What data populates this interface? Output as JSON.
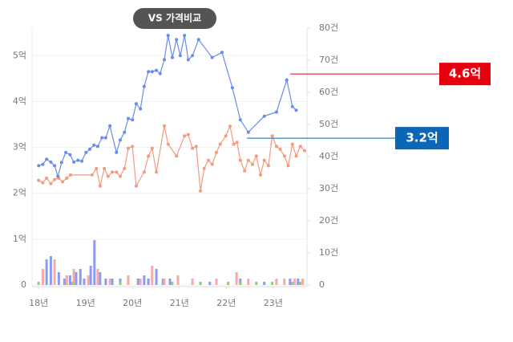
{
  "chart_data": {
    "type": "line",
    "title": "VS 가격비교",
    "xlim": [
      17.86,
      23.67
    ],
    "xticks": [
      {
        "value": 18,
        "label": "18년"
      },
      {
        "value": 19,
        "label": "19년"
      },
      {
        "value": 20,
        "label": "20년"
      },
      {
        "value": 21,
        "label": "21년"
      },
      {
        "value": 22,
        "label": "22년"
      },
      {
        "value": 23,
        "label": "23년"
      }
    ],
    "ylim": [
      0,
      5.6
    ],
    "yticks": [
      0,
      {
        "value": 1,
        "label": "1억"
      },
      {
        "value": 2,
        "label": "2억"
      },
      {
        "value": 3,
        "label": "3억"
      },
      {
        "value": 4,
        "label": "4억"
      },
      {
        "value": 5,
        "label": "5억"
      }
    ],
    "y2lim": [
      0,
      80
    ],
    "y2ticks": [
      0,
      {
        "value": 10,
        "label": "10건"
      },
      {
        "value": 20,
        "label": "20건"
      },
      {
        "value": 30,
        "label": "30건"
      },
      {
        "value": 40,
        "label": "40건"
      },
      {
        "value": 50,
        "label": "50건"
      },
      {
        "value": 60,
        "label": "60건"
      },
      {
        "value": 70,
        "label": "70건"
      },
      {
        "value": 80,
        "label": "80건"
      }
    ],
    "grid": true,
    "series": [
      {
        "type": "bar",
        "axis": "y2",
        "color": "#8c9bee",
        "x": [
          18.17,
          18.26,
          18.43,
          18.55,
          18.67,
          18.8,
          18.89,
          18.97,
          19.11,
          19.19,
          19.31,
          19.43,
          19.57,
          19.74,
          20.12,
          20.25,
          20.34,
          20.51,
          20.65,
          20.8,
          21.45,
          21.65,
          22.3,
          22.81,
          23.36,
          23.53
        ],
        "values": [
          8,
          9,
          4,
          2,
          3,
          4,
          5,
          2,
          6,
          14,
          4,
          2,
          2,
          2,
          2,
          3,
          2,
          5,
          2,
          2,
          1,
          1,
          2,
          1,
          2,
          2
        ]
      },
      {
        "type": "bar",
        "axis": "y2",
        "color": "#f5aaa8",
        "x": [
          18.09,
          18.34,
          18.6,
          18.75,
          19.06,
          19.26,
          19.52,
          19.91,
          20.17,
          20.42,
          20.68,
          20.97,
          21.28,
          21.79,
          22.22,
          22.47,
          23.07,
          23.24,
          23.46,
          23.63
        ],
        "values": [
          5,
          8,
          3,
          5,
          3,
          5,
          2,
          3,
          2,
          6,
          2,
          3,
          2,
          2,
          4,
          2,
          2,
          2,
          2,
          2
        ]
      },
      {
        "type": "bar",
        "axis": "y2",
        "color": "#8fcf6f",
        "x": [
          18.0,
          18.72,
          19.74,
          20.85,
          21.45,
          22.04,
          22.3,
          22.64,
          22.98,
          23.41,
          23.58
        ],
        "values": [
          1,
          1,
          1,
          1,
          1,
          1,
          1,
          1,
          1,
          1,
          1
        ]
      },
      {
        "type": "line",
        "color": "#f39a7f",
        "x": [
          18.0,
          18.09,
          18.17,
          18.26,
          18.34,
          18.43,
          18.51,
          18.6,
          18.68,
          19.14,
          19.23,
          19.31,
          19.4,
          19.48,
          19.57,
          19.66,
          19.74,
          19.83,
          19.91,
          20.0,
          20.08,
          20.25,
          20.34,
          20.42,
          20.51,
          20.68,
          20.76,
          20.94,
          21.11,
          21.19,
          21.28,
          21.36,
          21.45,
          21.53,
          21.62,
          21.7,
          21.79,
          21.87,
          21.99,
          22.08,
          22.16,
          22.23,
          22.3,
          22.39,
          22.47,
          22.56,
          22.64,
          22.73,
          22.81,
          22.9,
          22.98,
          23.07,
          23.15,
          23.24,
          23.32,
          23.41,
          23.49,
          23.58,
          23.67
        ],
        "values": [
          2.28,
          2.23,
          2.33,
          2.21,
          2.3,
          2.33,
          2.25,
          2.33,
          2.4,
          2.4,
          2.54,
          2.16,
          2.54,
          2.37,
          2.46,
          2.46,
          2.37,
          2.54,
          2.98,
          3.02,
          2.16,
          2.46,
          2.81,
          2.98,
          2.46,
          3.47,
          3.07,
          2.81,
          3.25,
          3.28,
          2.98,
          3.02,
          2.05,
          2.54,
          2.72,
          2.63,
          2.89,
          3.07,
          3.25,
          3.46,
          3.07,
          3.11,
          2.72,
          2.49,
          2.72,
          2.63,
          2.81,
          2.4,
          2.72,
          2.6,
          3.25,
          3.02,
          2.96,
          2.81,
          2.6,
          3.07,
          2.81,
          3.02,
          2.93
        ]
      },
      {
        "type": "line",
        "color": "#6b8be8",
        "x": [
          18.0,
          18.09,
          18.17,
          18.26,
          18.34,
          18.41,
          18.49,
          18.58,
          18.67,
          18.75,
          18.84,
          18.92,
          19.01,
          19.09,
          19.18,
          19.26,
          19.35,
          19.43,
          19.52,
          19.66,
          19.74,
          19.83,
          19.91,
          20.0,
          20.08,
          20.17,
          20.25,
          20.34,
          20.42,
          20.51,
          20.59,
          20.68,
          20.76,
          20.85,
          20.94,
          21.02,
          21.11,
          21.19,
          21.28,
          21.41,
          21.7,
          21.91,
          22.13,
          22.3,
          22.47,
          22.81,
          23.07,
          23.29,
          23.41,
          23.49
        ],
        "values": [
          2.6,
          2.63,
          2.74,
          2.68,
          2.6,
          2.37,
          2.67,
          2.89,
          2.84,
          2.68,
          2.72,
          2.7,
          2.89,
          2.96,
          3.05,
          3.02,
          3.21,
          3.21,
          3.47,
          2.89,
          3.16,
          3.33,
          3.63,
          3.6,
          3.95,
          3.84,
          4.33,
          4.65,
          4.65,
          4.68,
          4.61,
          4.91,
          5.44,
          4.96,
          5.35,
          5.0,
          5.44,
          4.91,
          5.0,
          5.35,
          4.96,
          5.07,
          4.3,
          3.6,
          3.33,
          3.68,
          3.77,
          4.47,
          3.89,
          3.81
        ]
      }
    ],
    "annotations": [
      {
        "value": 4.6,
        "label": "4.6억",
        "color": "#e8000f"
      },
      {
        "value": 3.2,
        "label": "3.2억",
        "color": "#0b66b8"
      }
    ]
  }
}
